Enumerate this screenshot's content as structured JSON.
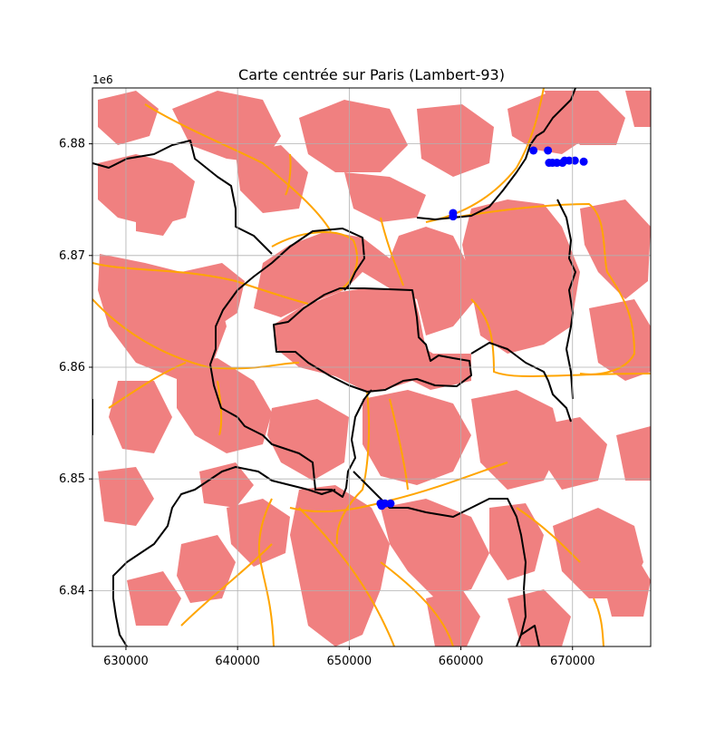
{
  "title": "Carte centrée sur Paris (Lambert-93)",
  "y_offset_label": "1e6",
  "x_ticks": [
    "630000",
    "640000",
    "650000",
    "660000",
    "670000"
  ],
  "y_ticks": [
    "6.88",
    "6.87",
    "6.86",
    "6.85",
    "6.84"
  ],
  "colors": {
    "urban": "#f08080",
    "roads": "#ffa500",
    "boundaries": "#000000",
    "points": "#0000ff",
    "grid": "#b0b0b0"
  },
  "chart_data": {
    "type": "map",
    "projection": "Lambert-93",
    "xlim": [
      627000,
      677000
    ],
    "ylim": [
      6835000,
      6885000
    ],
    "x_ticks": [
      630000,
      640000,
      650000,
      660000,
      670000
    ],
    "y_ticks": [
      6840000,
      6850000,
      6860000,
      6870000,
      6880000
    ],
    "grid": true,
    "layers": [
      "urban areas",
      "main roads",
      "administrative boundaries",
      "points"
    ],
    "points": [
      [
        666500,
        6879400
      ],
      [
        667800,
        6879400
      ],
      [
        667900,
        6878300
      ],
      [
        668200,
        6878300
      ],
      [
        668600,
        6878300
      ],
      [
        669100,
        6878300
      ],
      [
        669300,
        6878500
      ],
      [
        669700,
        6878500
      ],
      [
        670200,
        6878500
      ],
      [
        671000,
        6878400
      ],
      [
        659300,
        6873800
      ],
      [
        659300,
        6873500
      ],
      [
        652800,
        6847800
      ],
      [
        652900,
        6847600
      ],
      [
        653200,
        6847800
      ],
      [
        653700,
        6847800
      ]
    ]
  }
}
